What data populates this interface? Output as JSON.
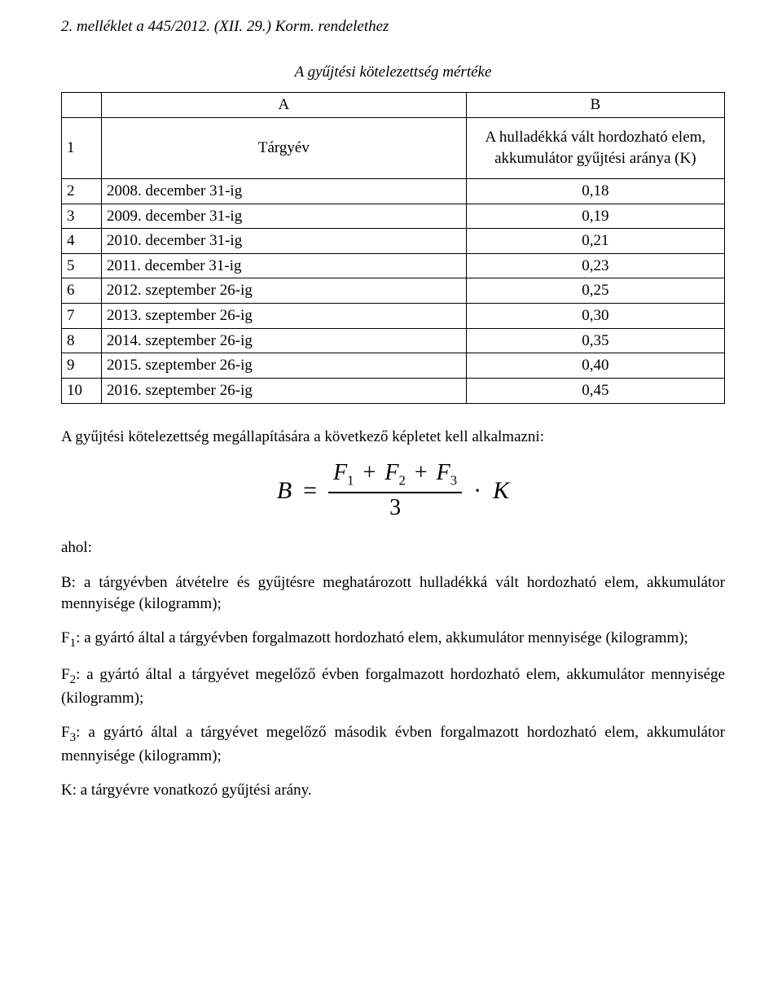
{
  "header": "2. melléklet a 445/2012. (XII. 29.) Korm. rendelethez",
  "subtitle": "A gyűjtési kötelezettség mértéke",
  "table": {
    "colA": "A",
    "colB": "B",
    "row1_num": "1",
    "row1_a": "Tárgyév",
    "row1_b": "A hulladékká vált hordozható elem, akkumulátor gyűjtési aránya (K)",
    "rows": [
      {
        "n": "2",
        "a": "2008. december 31-ig",
        "b": "0,18"
      },
      {
        "n": "3",
        "a": "2009. december 31-ig",
        "b": "0,19"
      },
      {
        "n": "4",
        "a": "2010. december 31-ig",
        "b": "0,21"
      },
      {
        "n": "5",
        "a": "2011. december 31-ig",
        "b": "0,23"
      },
      {
        "n": "6",
        "a": "2012. szeptember 26-ig",
        "b": "0,25"
      },
      {
        "n": "7",
        "a": "2013. szeptember 26-ig",
        "b": "0,30"
      },
      {
        "n": "8",
        "a": "2014. szeptember 26-ig",
        "b": "0,35"
      },
      {
        "n": "9",
        "a": "2015. szeptember 26-ig",
        "b": "0,40"
      },
      {
        "n": "10",
        "a": "2016. szeptember 26-ig",
        "b": "0,45"
      }
    ]
  },
  "intro": "A gyűjtési kötelezettség megállapítására a következő képletet kell alkalmazni:",
  "formula": {
    "lhs": "B",
    "eq": "=",
    "num_f1": "F",
    "num_s1": "1",
    "num_f2": "F",
    "num_s2": "2",
    "num_f3": "F",
    "num_s3": "3",
    "plus": "+",
    "den": "3",
    "dot": "·",
    "k": "K"
  },
  "ahol": "ahol:",
  "defs": {
    "b": "B: a tárgyévben átvételre és gyűjtésre meghatározott hulladékká vált hordozható elem, akkumulátor mennyisége (kilogramm);",
    "f1a": "F",
    "f1s": "1",
    "f1b": ": a gyártó által a tárgyévben forgalmazott hordozható elem, akkumulátor mennyisége (kilogramm);",
    "f2a": "F",
    "f2s": "2",
    "f2b": ": a gyártó által a tárgyévet megelőző évben forgalmazott hordozható elem, akkumulátor mennyisége (kilogramm);",
    "f3a": "F",
    "f3s": "3",
    "f3b": ": a gyártó által a tárgyévet megelőző második évben forgalmazott hordozható elem, akkumulátor mennyisége (kilogramm);",
    "k": "K: a tárgyévre vonatkozó gyűjtési arány."
  },
  "colors": {
    "text": "#000000",
    "background": "#ffffff",
    "border": "#000000"
  },
  "fonts": {
    "body_family": "Times New Roman",
    "body_size_pt": 12,
    "formula_size_pt": 20
  }
}
